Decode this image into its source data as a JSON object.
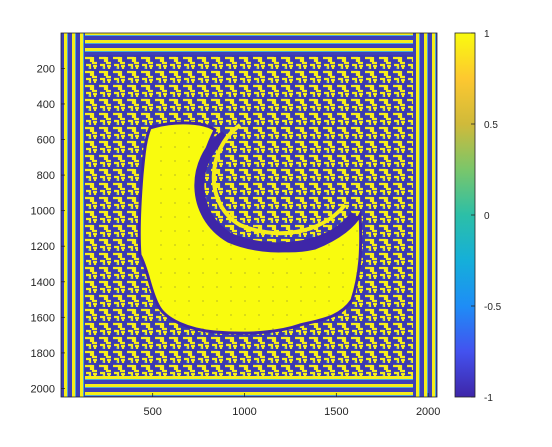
{
  "chart_data": {
    "type": "heatmap",
    "title": "",
    "xlabel": "",
    "ylabel": "",
    "description_of_field": "stripe/labyrinth pattern with a uniform high-value domain",
    "xlim": [
      1,
      2048
    ],
    "ylim": [
      2048,
      1
    ],
    "y_direction": "reversed",
    "x_ticks": [
      500,
      1000,
      1500,
      2000
    ],
    "y_ticks": [
      200,
      400,
      600,
      800,
      1000,
      1200,
      1400,
      1600,
      1800,
      2000
    ],
    "clim": [
      -1,
      1
    ],
    "colormap": "parula",
    "colorbar": {
      "position": "right",
      "ticks": [
        1,
        0.5,
        0,
        -0.5,
        -1
      ],
      "tick_labels": [
        "1",
        "0.5",
        "0",
        "-0.5",
        "-1"
      ]
    },
    "overlay": "quiver (small black arrows)",
    "grid": false
  }
}
